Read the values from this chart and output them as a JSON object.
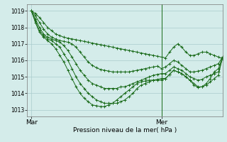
{
  "background_color": "#d4ecea",
  "grid_color": "#aacccc",
  "line_color": "#1a6b1a",
  "marker_color": "#1a6b1a",
  "ylabel_ticks": [
    1013,
    1014,
    1015,
    1016,
    1017,
    1018,
    1019
  ],
  "ylim": [
    1012.6,
    1019.4
  ],
  "xlabel": "Pression niveau de la mer( hPa )",
  "xtick_labels": [
    "Mar",
    "Mer"
  ],
  "xtick_positions": [
    0,
    32
  ],
  "xlim": [
    -1,
    47
  ],
  "ver_line_x": 32,
  "series": [
    [
      1019.0,
      1018.85,
      1018.6,
      1018.3,
      1018.0,
      1017.8,
      1017.6,
      1017.5,
      1017.4,
      1017.35,
      1017.3,
      1017.25,
      1017.2,
      1017.15,
      1017.1,
      1017.05,
      1017.0,
      1016.95,
      1016.9,
      1016.85,
      1016.8,
      1016.75,
      1016.7,
      1016.65,
      1016.6,
      1016.55,
      1016.5,
      1016.45,
      1016.4,
      1016.35,
      1016.3,
      1016.25,
      1016.2,
      1016.15,
      1016.5,
      1016.8,
      1017.0,
      1016.8,
      1016.5,
      1016.3,
      1016.3,
      1016.4,
      1016.5,
      1016.5,
      1016.4,
      1016.3,
      1016.2,
      1016.1
    ],
    [
      1019.0,
      1018.7,
      1018.3,
      1017.9,
      1017.6,
      1017.4,
      1017.3,
      1017.2,
      1017.15,
      1017.1,
      1017.0,
      1016.8,
      1016.5,
      1016.2,
      1015.9,
      1015.7,
      1015.55,
      1015.45,
      1015.4,
      1015.35,
      1015.3,
      1015.3,
      1015.3,
      1015.3,
      1015.3,
      1015.35,
      1015.4,
      1015.45,
      1015.5,
      1015.55,
      1015.6,
      1015.65,
      1015.5,
      1015.6,
      1015.8,
      1016.0,
      1015.9,
      1015.7,
      1015.5,
      1015.3,
      1015.3,
      1015.35,
      1015.4,
      1015.5,
      1015.6,
      1015.7,
      1015.8,
      1016.2
    ],
    [
      1019.0,
      1018.5,
      1018.0,
      1017.6,
      1017.4,
      1017.3,
      1017.2,
      1017.1,
      1016.9,
      1016.6,
      1016.2,
      1015.8,
      1015.4,
      1015.1,
      1014.8,
      1014.6,
      1014.5,
      1014.4,
      1014.3,
      1014.3,
      1014.3,
      1014.3,
      1014.4,
      1014.4,
      1014.5,
      1014.6,
      1014.7,
      1014.8,
      1014.9,
      1015.0,
      1015.1,
      1015.15,
      1015.2,
      1015.2,
      1015.4,
      1015.6,
      1015.5,
      1015.4,
      1015.2,
      1015.0,
      1014.9,
      1014.8,
      1014.85,
      1015.0,
      1015.1,
      1015.2,
      1015.3,
      1016.1
    ],
    [
      1019.0,
      1018.4,
      1017.8,
      1017.5,
      1017.3,
      1017.2,
      1017.0,
      1016.8,
      1016.4,
      1016.0,
      1015.5,
      1015.0,
      1014.6,
      1014.3,
      1014.0,
      1013.8,
      1013.6,
      1013.5,
      1013.4,
      1013.4,
      1013.4,
      1013.4,
      1013.5,
      1013.6,
      1013.8,
      1014.0,
      1014.3,
      1014.5,
      1014.6,
      1014.7,
      1014.8,
      1014.85,
      1014.9,
      1014.9,
      1015.15,
      1015.4,
      1015.3,
      1015.2,
      1015.0,
      1014.8,
      1014.6,
      1014.4,
      1014.4,
      1014.5,
      1014.7,
      1014.9,
      1015.1,
      1016.2
    ],
    [
      1019.0,
      1018.3,
      1017.7,
      1017.4,
      1017.2,
      1017.0,
      1016.7,
      1016.3,
      1015.9,
      1015.4,
      1014.9,
      1014.4,
      1014.0,
      1013.7,
      1013.5,
      1013.3,
      1013.25,
      1013.2,
      1013.2,
      1013.3,
      1013.4,
      1013.6,
      1013.8,
      1014.0,
      1014.2,
      1014.4,
      1014.6,
      1014.7,
      1014.75,
      1014.8,
      1014.8,
      1014.8,
      1014.8,
      1014.9,
      1015.15,
      1015.4,
      1015.3,
      1015.2,
      1015.0,
      1014.8,
      1014.5,
      1014.35,
      1014.4,
      1014.6,
      1014.9,
      1015.3,
      1015.5,
      1016.2
    ]
  ]
}
